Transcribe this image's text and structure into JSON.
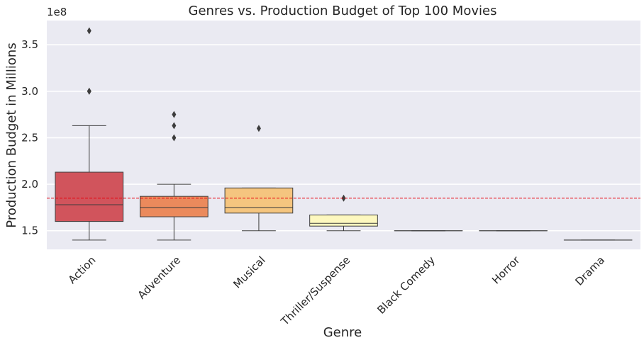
{
  "chart_data": {
    "type": "box",
    "title": "Genres vs. Production Budget of Top 100 Movies",
    "xlabel": "Genre",
    "ylabel": "Production Budget in Millions",
    "y_offset_label": "1e8",
    "y_scale_factor": 100000000,
    "ylim": [
      1.3,
      3.76
    ],
    "yticks": [
      1.5,
      2.0,
      2.5,
      3.0,
      3.5
    ],
    "ytick_labels": [
      "1.5",
      "2.0",
      "2.5",
      "3.0",
      "3.5"
    ],
    "reference_line": {
      "value": 1.85,
      "color": "#e8000b",
      "style": "dashed"
    },
    "grid": true,
    "background": "#eaeaf2",
    "categories": [
      "Action",
      "Adventure",
      "Musical",
      "Thriller/Suspense",
      "Black Comedy",
      "Horror",
      "Drama"
    ],
    "boxes": [
      {
        "category": "Action",
        "whislo": 1.4,
        "q1": 1.6,
        "med": 1.78,
        "q3": 2.13,
        "whishi": 2.63,
        "fliers": [
          3.0,
          3.0,
          3.65
        ],
        "color": "#d1545c"
      },
      {
        "category": "Adventure",
        "whislo": 1.4,
        "q1": 1.65,
        "med": 1.75,
        "q3": 1.87,
        "whishi": 2.0,
        "fliers": [
          2.5,
          2.63,
          2.75
        ],
        "color": "#eb8a5c"
      },
      {
        "category": "Musical",
        "whislo": 1.5,
        "q1": 1.69,
        "med": 1.75,
        "q3": 1.96,
        "whishi": 1.96,
        "fliers": [
          2.6
        ],
        "color": "#f5c57f"
      },
      {
        "category": "Thriller/Suspense",
        "whislo": 1.5,
        "q1": 1.55,
        "med": 1.58,
        "q3": 1.67,
        "whishi": 1.67,
        "fliers": [
          1.85
        ],
        "color": "#fdf8bf"
      },
      {
        "category": "Black Comedy",
        "whislo": 1.5,
        "q1": 1.5,
        "med": 1.5,
        "q3": 1.5,
        "whishi": 1.5,
        "fliers": [],
        "color": "#eeeeee"
      },
      {
        "category": "Horror",
        "whislo": 1.5,
        "q1": 1.5,
        "med": 1.5,
        "q3": 1.5,
        "whishi": 1.5,
        "fliers": [],
        "color": "#eeeeee"
      },
      {
        "category": "Drama",
        "whislo": 1.4,
        "q1": 1.4,
        "med": 1.4,
        "q3": 1.4,
        "whishi": 1.4,
        "fliers": [],
        "color": "#eeeeee"
      }
    ]
  }
}
